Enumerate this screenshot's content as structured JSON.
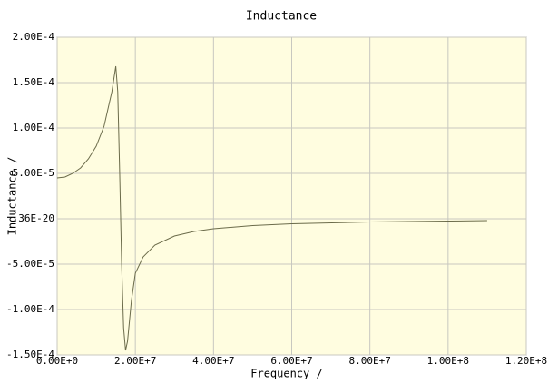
{
  "chart_data": {
    "type": "line",
    "title": "Inductance",
    "x_label": "Frequency /",
    "y_label": "Inductance /",
    "x": [
      0,
      2000000,
      4000000,
      6000000,
      8000000,
      10000000,
      12000000,
      14000000,
      15000000,
      15500000,
      16000000,
      16500000,
      17000000,
      17500000,
      18000000,
      19000000,
      20000000,
      22000000,
      25000000,
      30000000,
      35000000,
      40000000,
      50000000,
      60000000,
      80000000,
      100000000,
      110000000
    ],
    "series": [
      {
        "name": "Inductance",
        "color": "#6b6b4a",
        "values": [
          4.5e-05,
          4.6e-05,
          5e-05,
          5.6e-05,
          6.6e-05,
          8e-05,
          0.000102,
          0.00014,
          0.000168,
          0.00014,
          5e-05,
          -5e-05,
          -0.00012,
          -0.000145,
          -0.000135,
          -9e-05,
          -6e-05,
          -4.2e-05,
          -2.9e-05,
          -1.9e-05,
          -1.4e-05,
          -1.1e-05,
          -7.5e-06,
          -5.5e-06,
          -3.5e-06,
          -2.5e-06,
          -2e-06
        ]
      }
    ],
    "xlim": [
      0,
      120000000
    ],
    "xticks": [
      {
        "value": 0,
        "label": "0.00E+0"
      },
      {
        "value": 20000000,
        "label": "2.00E+7"
      },
      {
        "value": 40000000,
        "label": "4.00E+7"
      },
      {
        "value": 60000000,
        "label": "6.00E+7"
      },
      {
        "value": 80000000,
        "label": "8.00E+7"
      },
      {
        "value": 100000000,
        "label": "1.00E+8"
      },
      {
        "value": 120000000,
        "label": "1.20E+8"
      }
    ],
    "ylim": [
      -0.00015,
      0.0002
    ],
    "yticks": [
      {
        "value": -0.00015,
        "label": "-1.50E-4"
      },
      {
        "value": -0.0001,
        "label": "-1.00E-4"
      },
      {
        "value": -5e-05,
        "label": "-5.00E-5"
      },
      {
        "value": 3.6e-21,
        "label": ".36E-20"
      },
      {
        "value": 5e-05,
        "label": "5.00E-5"
      },
      {
        "value": 0.0001,
        "label": "1.00E-4"
      },
      {
        "value": 0.00015,
        "label": "1.50E-4"
      },
      {
        "value": 0.0002,
        "label": "2.00E-4"
      }
    ],
    "grid": true,
    "background": "#fffde0"
  }
}
